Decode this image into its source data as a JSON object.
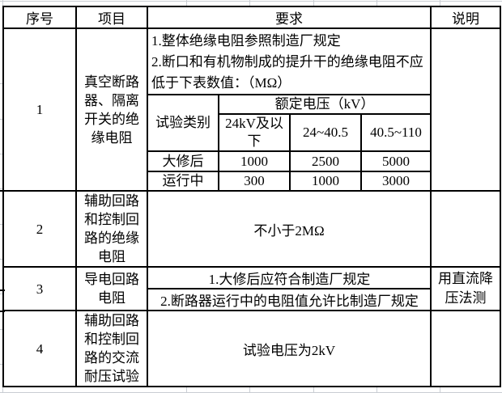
{
  "page": {
    "background": "#ffffff",
    "rule_color": "#000000",
    "gridline_color": "#c9cdd3"
  },
  "table": {
    "headers": {
      "num": "序号",
      "item": "项目",
      "req": "要求",
      "note": "说明"
    },
    "rows": {
      "r1": {
        "num": "1",
        "item": "真空断路器、隔离开关的绝缘电阻",
        "req_line1": "1.整体绝缘电阻参照制造厂规定",
        "req_line2": "2.断口和有机物制成的提升干的绝缘电阻不应低于下表数值：（MΩ）"
      },
      "r2": {
        "num": "2",
        "item": "辅助回路和控制回路的绝缘电阻",
        "req": "不小于2MΩ"
      },
      "r3": {
        "num": "3",
        "item": "导电回路电阻",
        "req_line1": "1.大修后应符合制造厂规定",
        "req_line2": "2.断路器运行中的电阻值允许比制造厂规定",
        "note": "用直流降压法测"
      },
      "r4": {
        "num": "4",
        "item": "辅助回路和控制回路的交流耐压试验",
        "req": "试验电压为2kV"
      }
    },
    "inner_table": {
      "corner": "试验类别",
      "voltage_header": "额定电压（kV）",
      "columns": [
        "24kV及以下",
        "24~40.5",
        "40.5~110"
      ],
      "rows": [
        {
          "label": "大修后",
          "values": [
            "1000",
            "2500",
            "5000"
          ]
        },
        {
          "label": "运行中",
          "values": [
            "300",
            "1000",
            "3000"
          ]
        }
      ]
    }
  }
}
